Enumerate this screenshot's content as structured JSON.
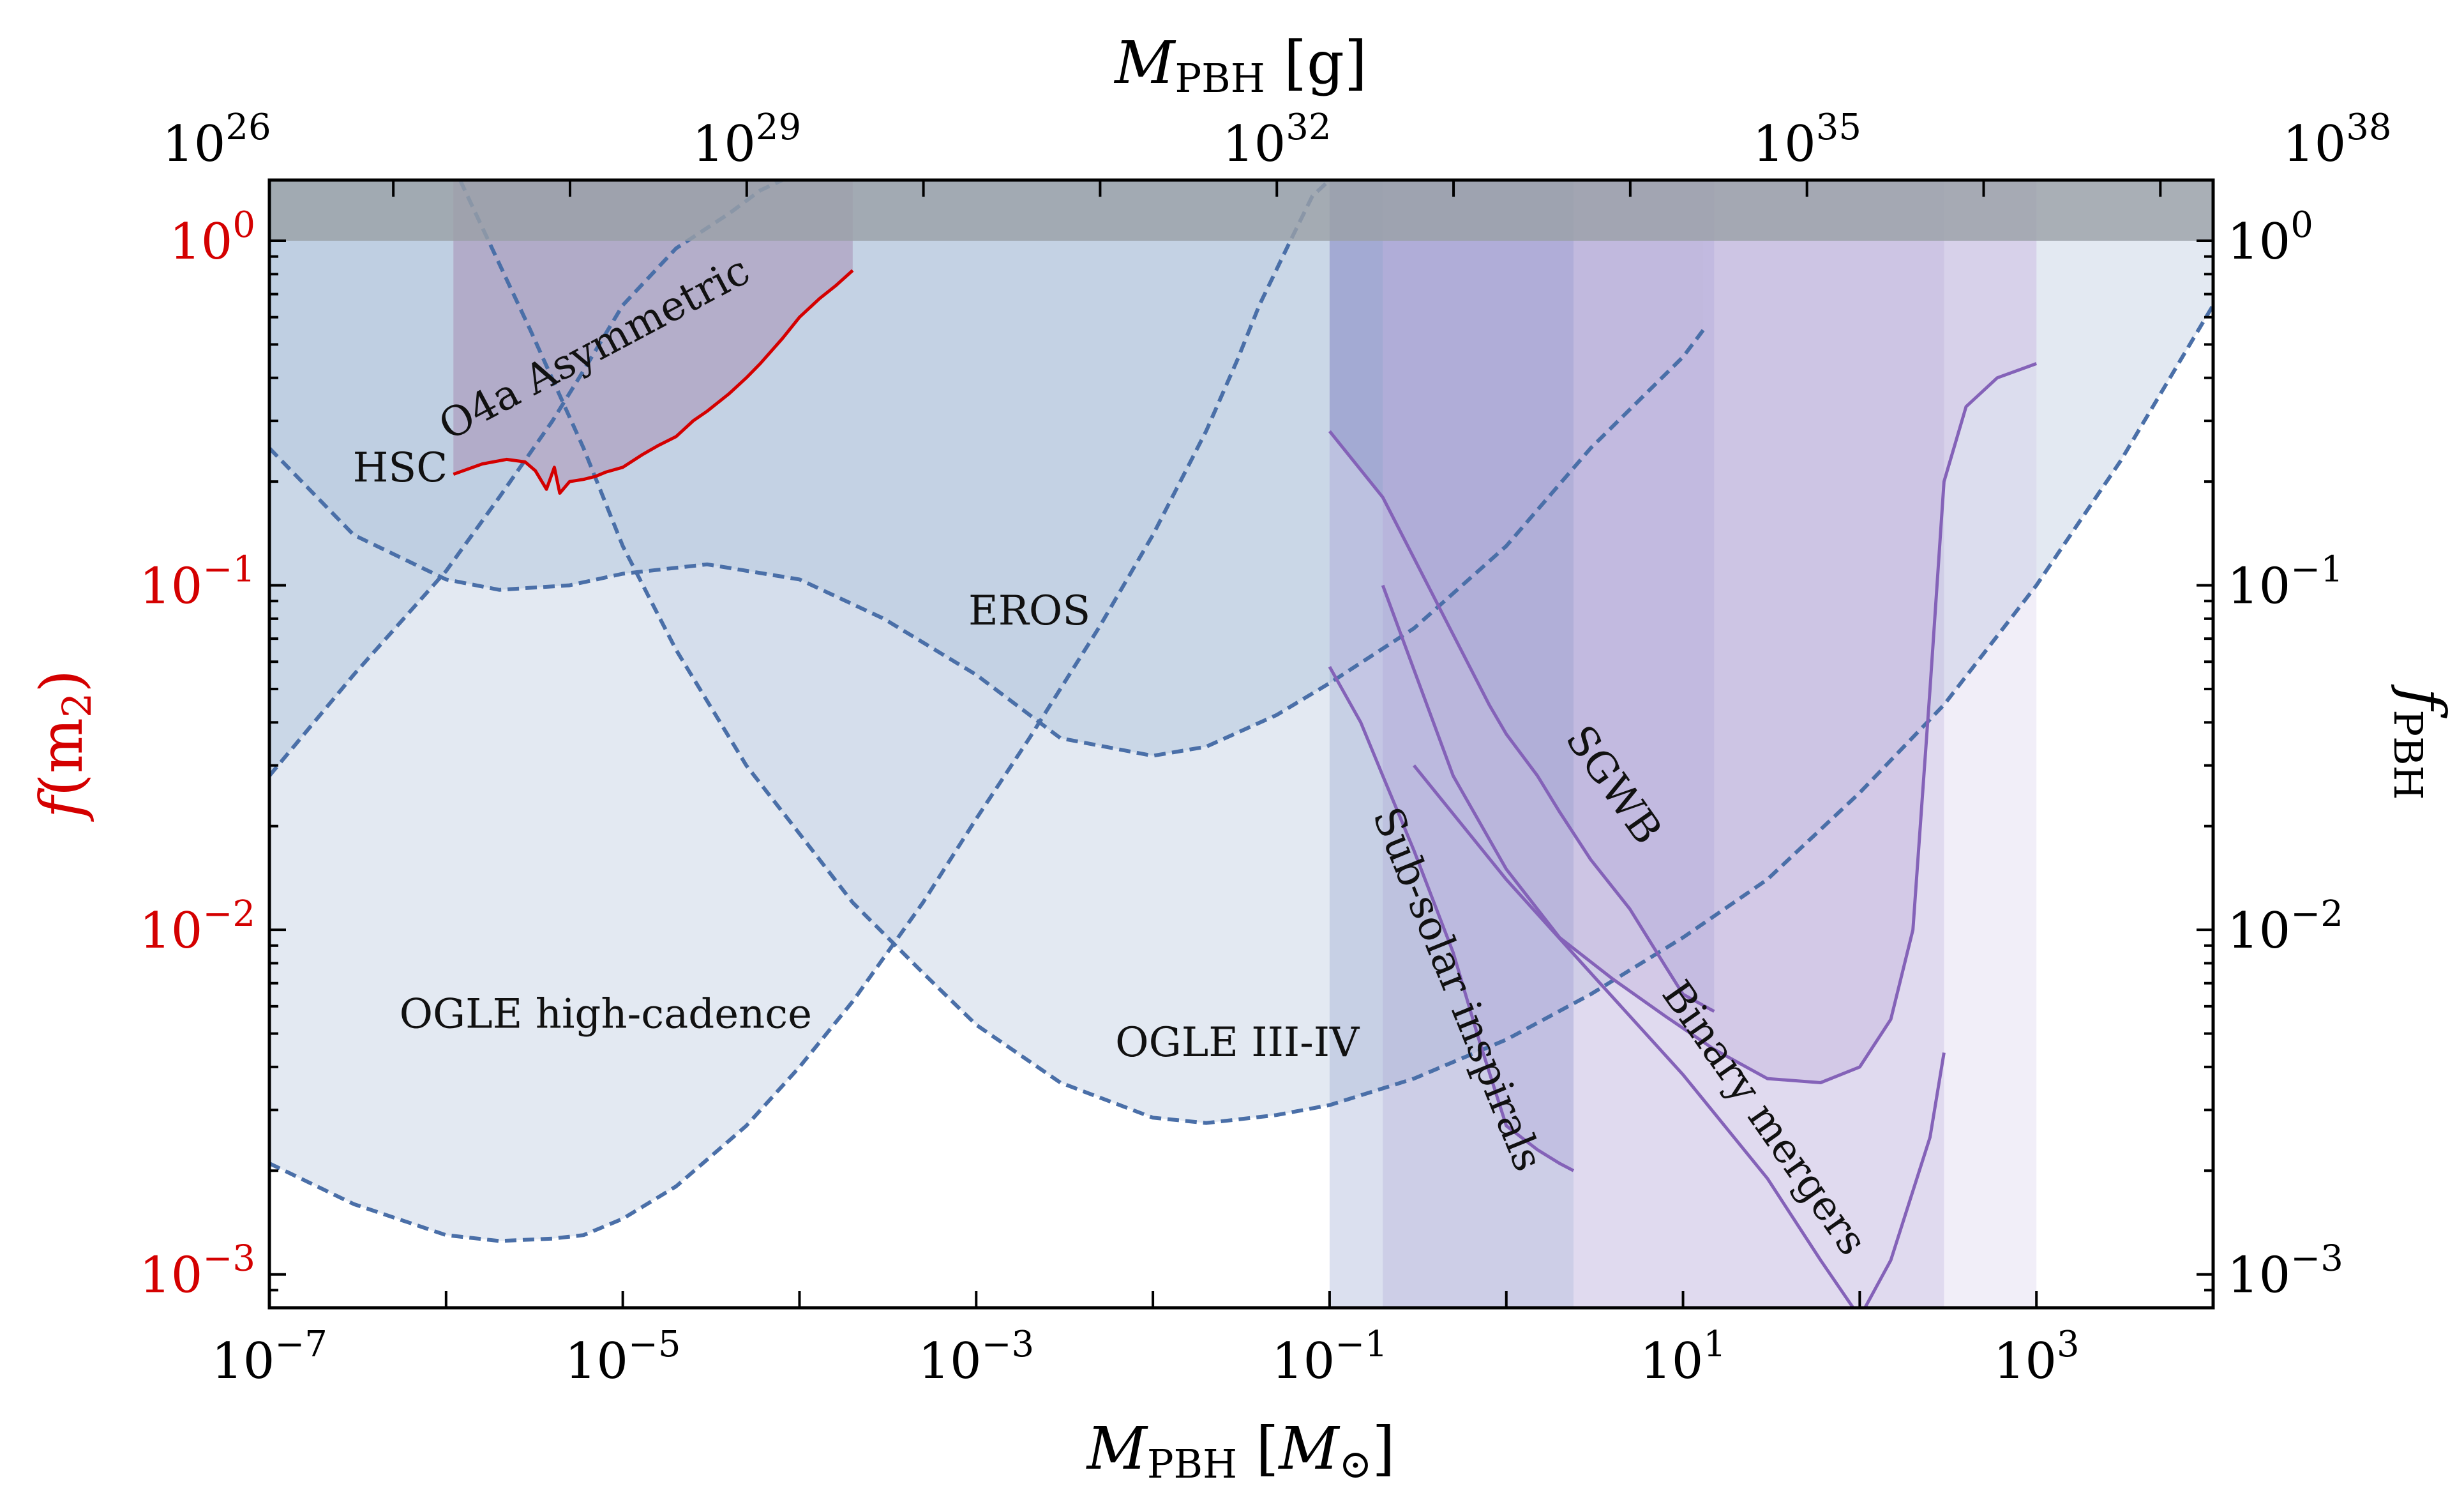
{
  "chart_data": {
    "type": "area",
    "title": "",
    "xlabel": {
      "symbol": "M",
      "sub": "PBH",
      "unit_pre": " [",
      "unit": "M",
      "unit_sub": "⊙",
      "unit_post": "]"
    },
    "x2label": {
      "symbol": "M",
      "sub": "PBH",
      "unit": " [g]"
    },
    "ylabel_left": {
      "symbol": "f",
      "arg": "(m",
      "arg_sub": "2",
      "close": ")",
      "color": "#d40000"
    },
    "ylabel_right": {
      "symbol": "f",
      "sub": "PBH"
    },
    "xscale": "log",
    "yscale": "log",
    "xlim_msun": [
      1e-07,
      10000
    ],
    "ylim": [
      0.0008,
      1.5
    ],
    "x_ticks": [
      {
        "value": 1e-07,
        "base": "10",
        "exp": "−7"
      },
      {
        "value": 1e-05,
        "base": "10",
        "exp": "−5"
      },
      {
        "value": 0.001,
        "base": "10",
        "exp": "−3"
      },
      {
        "value": 0.1,
        "base": "10",
        "exp": "−1"
      },
      {
        "value": 10,
        "base": "10",
        "exp": "1"
      },
      {
        "value": 1000,
        "base": "10",
        "exp": "3"
      }
    ],
    "x2_ticks_grams": [
      {
        "value_msun": 5.03e-08,
        "base": "10",
        "exp": "26"
      },
      {
        "value_msun": 5.03e-05,
        "base": "10",
        "exp": "29"
      },
      {
        "value_msun": 0.0503,
        "base": "10",
        "exp": "32"
      },
      {
        "value_msun": 50.3,
        "base": "10",
        "exp": "35"
      },
      {
        "value_msun": 50300,
        "base": "10",
        "exp": "38"
      }
    ],
    "y_ticks": [
      {
        "value": 1,
        "base": "10",
        "exp": "0"
      },
      {
        "value": 0.1,
        "base": "10",
        "exp": "−1"
      },
      {
        "value": 0.01,
        "base": "10",
        "exp": "−2"
      },
      {
        "value": 0.001,
        "base": "10",
        "exp": "−3"
      }
    ],
    "unity_band": {
      "from": 1,
      "to": 1.5,
      "color": "#9aa0a6"
    },
    "series": [
      {
        "name": "OGLE high-cadence",
        "style": "dashed",
        "color": "#4a6fa8",
        "fill": "#c8d4e6",
        "fill_opacity": 0.5,
        "x": [
          1e-07,
          3e-07,
          1e-06,
          2e-06,
          4e-06,
          6e-06,
          1e-05,
          2e-05,
          5e-05,
          0.0001,
          0.0002,
          0.0005,
          0.001,
          0.002,
          0.005,
          0.01,
          0.02,
          0.03,
          0.04,
          0.06,
          0.08,
          0.1
        ],
        "y": [
          0.0021,
          0.0016,
          0.0013,
          0.00125,
          0.00127,
          0.0013,
          0.00145,
          0.0018,
          0.0027,
          0.004,
          0.0062,
          0.012,
          0.021,
          0.036,
          0.076,
          0.14,
          0.28,
          0.45,
          0.65,
          1.0,
          1.35,
          1.5
        ]
      },
      {
        "name": "OGLE III-IV",
        "style": "dashed",
        "color": "#4a6fa8",
        "fill": "#c8d4e6",
        "fill_opacity": 0.5,
        "x": [
          1.2e-06,
          3e-06,
          6e-06,
          1e-05,
          2e-05,
          5e-05,
          0.0001,
          0.0002,
          0.0005,
          0.001,
          0.003,
          0.01,
          0.02,
          0.05,
          0.1,
          0.3,
          1,
          3,
          10,
          30,
          100,
          300,
          1000,
          3000,
          10000
        ],
        "y": [
          1.5,
          0.55,
          0.25,
          0.13,
          0.065,
          0.03,
          0.019,
          0.012,
          0.0075,
          0.0053,
          0.0036,
          0.00285,
          0.00275,
          0.0029,
          0.0031,
          0.0037,
          0.0048,
          0.0065,
          0.0095,
          0.014,
          0.025,
          0.045,
          0.1,
          0.23,
          0.65
        ]
      },
      {
        "name": "EROS",
        "style": "dashed",
        "color": "#4a6fa8",
        "fill": "#b7c9de",
        "fill_opacity": 0.55,
        "x": [
          1e-07,
          3e-07,
          1e-06,
          2e-06,
          5e-06,
          1e-05,
          3e-05,
          0.0001,
          0.0003,
          0.001,
          0.003,
          0.01,
          0.02,
          0.05,
          0.1,
          0.3,
          1,
          3,
          10,
          13
        ],
        "y": [
          0.25,
          0.14,
          0.104,
          0.097,
          0.1,
          0.108,
          0.115,
          0.104,
          0.08,
          0.055,
          0.036,
          0.032,
          0.034,
          0.042,
          0.052,
          0.075,
          0.13,
          0.25,
          0.46,
          0.55
        ]
      },
      {
        "name": "HSC",
        "style": "dashed",
        "color": "#4a6fa8",
        "fill": "#b7c9de",
        "fill_opacity": 0.55,
        "x": [
          1e-07,
          3e-07,
          1e-06,
          2e-06,
          4e-06,
          6e-06,
          1e-05,
          2e-05,
          4e-05,
          6e-05,
          8e-05
        ],
        "y": [
          0.028,
          0.055,
          0.11,
          0.18,
          0.3,
          0.42,
          0.65,
          0.95,
          1.2,
          1.4,
          1.5
        ]
      },
      {
        "name": "O4a Asymmetric",
        "style": "solid",
        "color": "#d40000",
        "fill": "#a88fb5",
        "fill_opacity": 0.55,
        "x": [
          1.1e-06,
          1.6e-06,
          2.2e-06,
          2.8e-06,
          3.2e-06,
          3.7e-06,
          4.1e-06,
          4.4e-06,
          5e-06,
          6e-06,
          7e-06,
          8e-06,
          1e-05,
          1.3e-05,
          1.6e-05,
          2e-05,
          2.5e-05,
          3e-05,
          4e-05,
          5e-05,
          6e-05,
          8e-05,
          0.0001,
          0.00013,
          0.00016,
          0.0002
        ],
        "y": [
          0.21,
          0.225,
          0.232,
          0.228,
          0.215,
          0.19,
          0.22,
          0.185,
          0.2,
          0.203,
          0.207,
          0.213,
          0.22,
          0.24,
          0.255,
          0.27,
          0.3,
          0.32,
          0.36,
          0.4,
          0.44,
          0.52,
          0.6,
          0.68,
          0.74,
          0.82
        ]
      },
      {
        "name": "Sub-solar inspirals",
        "style": "solid",
        "color": "#8462b8",
        "fill": "#dcd3ee",
        "fill_opacity": 0.6,
        "x": [
          0.1,
          0.15,
          0.2,
          0.3,
          0.5,
          0.7,
          1.0,
          1.5,
          2.0,
          2.4
        ],
        "y": [
          0.058,
          0.04,
          0.028,
          0.017,
          0.0086,
          0.0048,
          0.0027,
          0.0023,
          0.0021,
          0.002
        ]
      },
      {
        "name": "SGWB",
        "style": "solid",
        "color": "#8462b8",
        "fill": "#9fa4d0",
        "fill_opacity": 0.65,
        "x": [
          0.1,
          0.2,
          0.3,
          0.5,
          0.8,
          1.0,
          1.5,
          2.0,
          3.0,
          5.0,
          8.0,
          10,
          15
        ],
        "y": [
          0.28,
          0.18,
          0.12,
          0.072,
          0.045,
          0.037,
          0.028,
          0.022,
          0.016,
          0.0115,
          0.0078,
          0.0065,
          0.0058
        ]
      },
      {
        "name": "Binary mergers",
        "style": "solid",
        "color": "#8462b8",
        "fill": "#d8cde9",
        "fill_opacity": 0.6,
        "x": [
          0.2,
          0.5,
          1,
          2,
          4,
          8,
          15,
          30,
          60,
          100,
          150,
          200,
          250,
          300,
          400,
          600,
          1000
        ],
        "y": [
          0.1,
          0.028,
          0.015,
          0.0095,
          0.0072,
          0.0056,
          0.0045,
          0.0037,
          0.0036,
          0.004,
          0.0055,
          0.01,
          0.05,
          0.2,
          0.33,
          0.4,
          0.44
        ]
      },
      {
        "name": "Binary mergers (lower)",
        "style": "solid",
        "color": "#8462b8",
        "fill": "none",
        "fill_opacity": 0,
        "x": [
          0.3,
          1,
          3,
          10,
          30,
          60,
          100,
          150,
          250,
          300
        ],
        "y": [
          0.03,
          0.014,
          0.0075,
          0.0038,
          0.0019,
          0.0011,
          0.00075,
          0.0011,
          0.0025,
          0.0044
        ]
      }
    ],
    "vertical_bands": [
      {
        "from": 0.1,
        "to": 2.4,
        "color": "#7f8fc6",
        "opacity": 0.28
      },
      {
        "from": 0.2,
        "to": 300,
        "color": "#a59ad0",
        "opacity": 0.26
      },
      {
        "from": 2.4,
        "to": 1000,
        "color": "#c6bde3",
        "opacity": 0.25
      }
    ],
    "annotations": [
      {
        "text": "HSC",
        "x": 5.5e-07,
        "y": 0.2,
        "rotation": 0
      },
      {
        "text": "O4a Asymmetric",
        "x": 7.5e-06,
        "y": 0.45,
        "rotation": -28
      },
      {
        "text": "EROS",
        "x": 0.002,
        "y": 0.077,
        "rotation": 0
      },
      {
        "text": "OGLE high-cadence",
        "x": 8e-06,
        "y": 0.0052,
        "rotation": 0
      },
      {
        "text": "OGLE III-IV",
        "x": 0.03,
        "y": 0.0043,
        "rotation": 0
      },
      {
        "text": "Sub-solar inspirals",
        "x": 0.45,
        "y": 0.0065,
        "rotation": 68
      },
      {
        "text": "SGWB",
        "x": 3.5,
        "y": 0.025,
        "rotation": 55
      },
      {
        "text": "Binary mergers",
        "x": 25,
        "y": 0.0027,
        "rotation": 55
      }
    ]
  }
}
